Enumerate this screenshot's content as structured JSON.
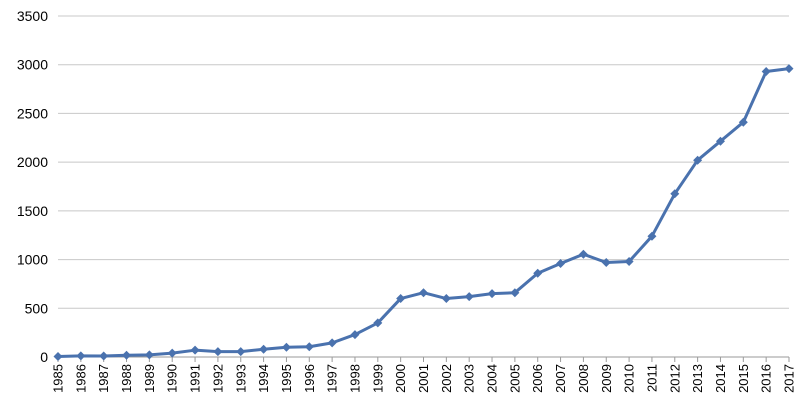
{
  "chart_data": {
    "type": "line",
    "title": "",
    "xlabel": "",
    "ylabel": "",
    "ylim": [
      0,
      3500
    ],
    "yticks": [
      0,
      500,
      1000,
      1500,
      2000,
      2500,
      3000,
      3500
    ],
    "grid": "horizontal",
    "legend": "none",
    "categories": [
      "1985",
      "1986",
      "1987",
      "1988",
      "1989",
      "1990",
      "1991",
      "1992",
      "1993",
      "1994",
      "1995",
      "1996",
      "1997",
      "1998",
      "1999",
      "2000",
      "2001",
      "2002",
      "2003",
      "2004",
      "2005",
      "2006",
      "2007",
      "2008",
      "2009",
      "2010",
      "2011",
      "2012",
      "2013",
      "2014",
      "2015",
      "2016",
      "2017"
    ],
    "series": [
      {
        "color": "#4a72ae",
        "marker": "diamond",
        "values": [
          5,
          12,
          10,
          18,
          22,
          40,
          70,
          55,
          55,
          80,
          100,
          105,
          145,
          230,
          350,
          600,
          660,
          600,
          620,
          650,
          660,
          860,
          960,
          1055,
          970,
          980,
          1240,
          1675,
          2020,
          2215,
          2410,
          2930,
          2960
        ]
      }
    ],
    "colors": {
      "grid": "#c8c8c8",
      "axis": "#9a9a9a",
      "line": "#4a72ae",
      "marker": "#4a72ae"
    }
  }
}
